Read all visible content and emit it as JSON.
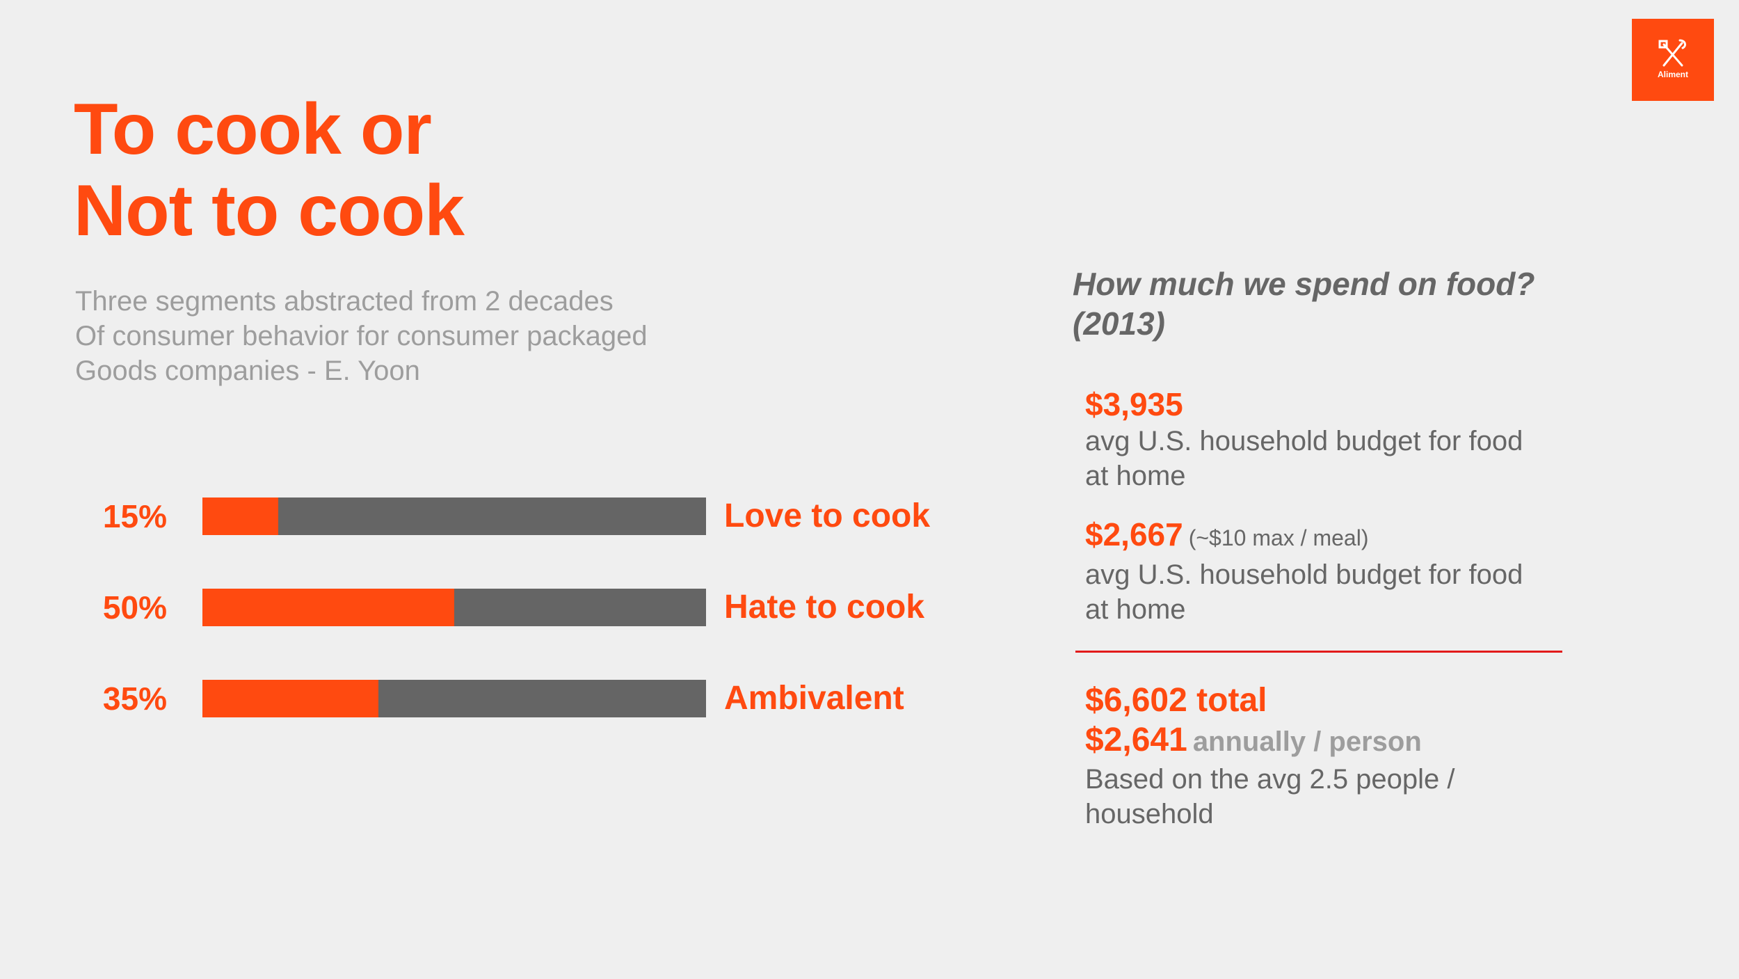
{
  "slide": {
    "title_lines": [
      "To cook or",
      "Not to cook"
    ],
    "subtitle_lines": [
      "Three segments abstracted from 2 decades",
      "Of consumer behavior for consumer packaged",
      "Goods companies - E. Yoon"
    ],
    "logo_text": "Aliment",
    "logo_icon": "crossed-utensils-icon"
  },
  "colors": {
    "accent": "#ff4a10",
    "bar_track": "#656565",
    "background": "#efefef",
    "divider": "#e21b1b",
    "muted_text": "#9d9d9d",
    "body_text": "#666666"
  },
  "chart_data": {
    "type": "bar",
    "orientation": "horizontal",
    "categories": [
      "Love to cook",
      "Hate to cook",
      "Ambivalent"
    ],
    "values": [
      15,
      50,
      35
    ],
    "value_labels": [
      "15%",
      "50%",
      "35%"
    ],
    "xlim": [
      0,
      100
    ],
    "title": "",
    "xlabel": "",
    "ylabel": "",
    "grid": false
  },
  "spending": {
    "question_lines": [
      "How much we spend on food?",
      "(2013)"
    ],
    "stats": [
      {
        "value": "$3,935",
        "note": "",
        "description_lines": [
          "avg U.S. household budget  for food",
          "at home"
        ]
      },
      {
        "value": "$2,667",
        "note": "(~$10 max / meal)",
        "description_lines": [
          "avg U.S. household budget  for food",
          "at home"
        ]
      }
    ],
    "total": {
      "total_line": "$6,602 total",
      "per_person_value": "$2,641",
      "per_person_unit": "annually / person",
      "description_lines": [
        "Based on the avg 2.5 people /",
        "household"
      ]
    }
  }
}
